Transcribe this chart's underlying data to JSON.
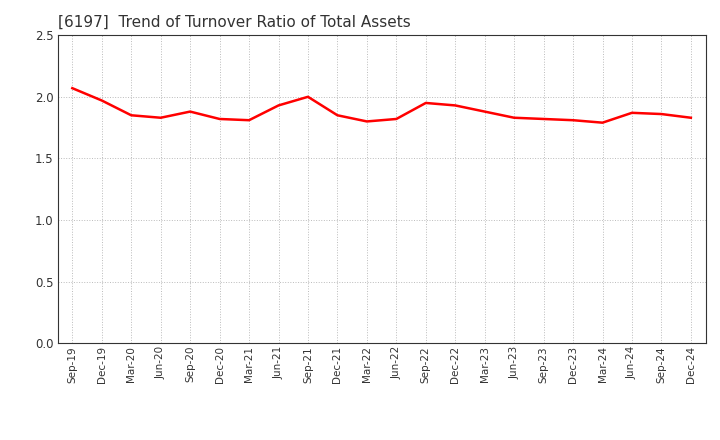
{
  "title": "[6197]  Trend of Turnover Ratio of Total Assets",
  "title_fontsize": 11,
  "title_color": "#333333",
  "line_color": "#FF0000",
  "line_width": 1.8,
  "background_color": "#FFFFFF",
  "grid_color": "#AAAAAA",
  "ylim": [
    0.0,
    2.5
  ],
  "yticks": [
    0.0,
    0.5,
    1.0,
    1.5,
    2.0,
    2.5
  ],
  "x_labels": [
    "Sep-19",
    "Dec-19",
    "Mar-20",
    "Jun-20",
    "Sep-20",
    "Dec-20",
    "Mar-21",
    "Jun-21",
    "Sep-21",
    "Dec-21",
    "Mar-22",
    "Jun-22",
    "Sep-22",
    "Dec-22",
    "Mar-23",
    "Jun-23",
    "Sep-23",
    "Dec-23",
    "Mar-24",
    "Jun-24",
    "Sep-24",
    "Dec-24"
  ],
  "values": [
    2.07,
    1.97,
    1.85,
    1.83,
    1.88,
    1.82,
    1.81,
    1.93,
    2.0,
    1.85,
    1.8,
    1.82,
    1.95,
    1.93,
    1.88,
    1.83,
    1.82,
    1.81,
    1.79,
    1.87,
    1.86,
    1.83
  ]
}
